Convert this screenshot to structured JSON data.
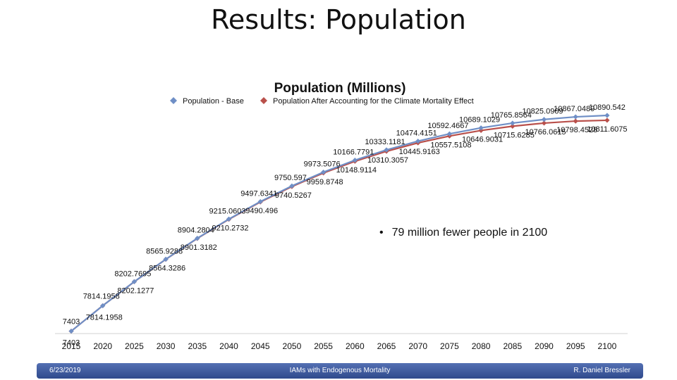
{
  "slide": {
    "title": "Results: Population",
    "bullet": "79 million fewer people in 2100"
  },
  "footer": {
    "date": "6/23/2019",
    "center": "IAMs with Endogenous Mortality",
    "author": "R. Daniel Bressler"
  },
  "colors": {
    "base": "#6f8fc6",
    "climate": "#b9504b",
    "footer": "#3a559a"
  },
  "chart_data": {
    "type": "line",
    "title": "Population (Millions)",
    "legend_position": "top",
    "grid": false,
    "categories": [
      "2015",
      "2020",
      "2025",
      "2030",
      "2035",
      "2040",
      "2045",
      "2050",
      "2055",
      "2060",
      "2065",
      "2070",
      "2075",
      "2080",
      "2085",
      "2090",
      "2095",
      "2100"
    ],
    "ylim": [
      7000,
      11300
    ],
    "series": [
      {
        "name": "Population - Base",
        "values": [
          7403,
          7814.1958,
          8202.7695,
          8565.9288,
          8904.2804,
          9215.0603,
          9497.6341,
          9750.597,
          9973.5076,
          10166.7791,
          10333.1181,
          10474.4151,
          10592.4667,
          10689.1029,
          10765.8564,
          10825.0909,
          10867.0489,
          10890.542
        ],
        "labels": [
          "7403",
          "7814.1958",
          "8202.7695",
          "8565.9288",
          "8904.2804",
          "9215.0603",
          "9497.6341",
          "9750.597",
          "9973.5076",
          "10166.7791",
          "10333.1181",
          "10474.4151",
          "10592.4667",
          "10689.1029",
          "10765.8564",
          "10825.0909",
          "10867.0489",
          "10890.542"
        ]
      },
      {
        "name": "Population After Accounting for the Climate Mortality Effect",
        "values": [
          7403,
          7814.1958,
          8202.1277,
          8564.3286,
          8901.3182,
          9210.2732,
          9490.496,
          9740.5267,
          9959.8748,
          10148.9114,
          10310.3057,
          10445.9163,
          10557.5108,
          10646.9031,
          10715.6285,
          10766.0615,
          10798.4528,
          10811.6075
        ],
        "labels": [
          "7403",
          "7814.1958",
          "8202.1277",
          "8564.3286",
          "8901.3182",
          "9210.2732",
          "9490.496",
          "9740.5267",
          "9959.8748",
          "10148.9114",
          "10310.3057",
          "10445.9163",
          "10557.5108",
          "10646.9031",
          "10715.6285",
          "10766.0615",
          "10798.4528",
          "10811.6075"
        ]
      }
    ]
  }
}
